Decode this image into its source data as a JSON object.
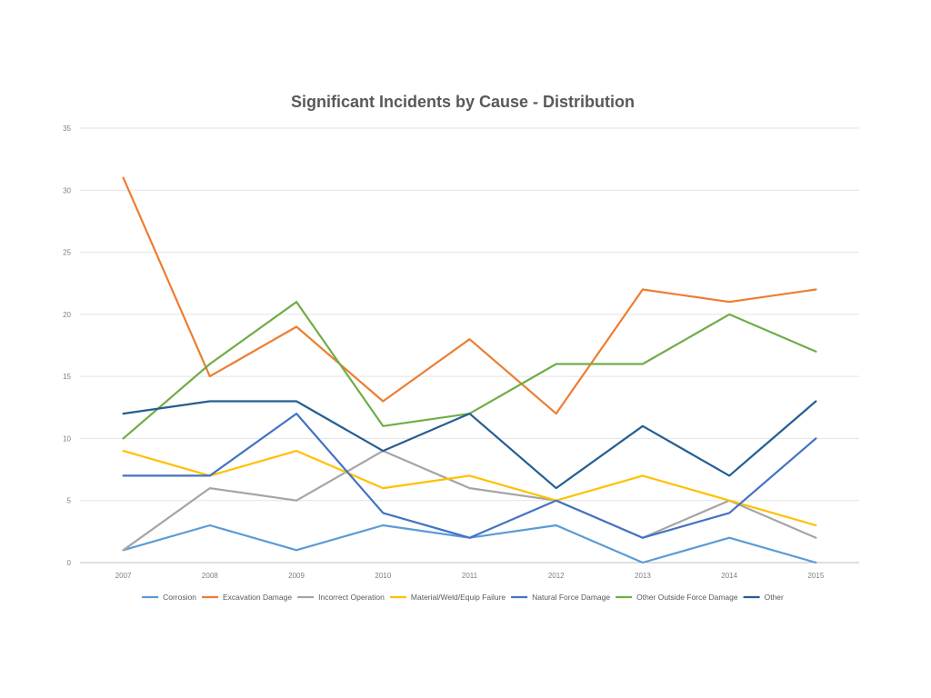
{
  "chart_data": {
    "type": "line",
    "title": "Significant Incidents by Cause - Distribution",
    "xlabel": "",
    "ylabel": "",
    "categories": [
      "2007",
      "2008",
      "2009",
      "2010",
      "2011",
      "2012",
      "2013",
      "2014",
      "2015"
    ],
    "ylim": [
      0,
      35
    ],
    "yticks": [
      "0",
      "5",
      "10",
      "15",
      "20",
      "25",
      "30",
      "35"
    ],
    "grid": "horizontal",
    "legend_position": "bottom",
    "series": [
      {
        "name": "Corrosion",
        "color": "#5b9bd5",
        "values": [
          1,
          3,
          1,
          3,
          2,
          3,
          0,
          2,
          0
        ]
      },
      {
        "name": "Excavation Damage",
        "color": "#ed7d31",
        "values": [
          31,
          15,
          19,
          13,
          18,
          12,
          22,
          21,
          22
        ]
      },
      {
        "name": "Incorrect Operation",
        "color": "#a5a5a5",
        "values": [
          1,
          6,
          5,
          9,
          6,
          5,
          2,
          5,
          2
        ]
      },
      {
        "name": "Material/Weld/Equip Failure",
        "color": "#ffc000",
        "values": [
          9,
          7,
          9,
          6,
          7,
          5,
          7,
          5,
          3
        ]
      },
      {
        "name": "Natural Force Damage",
        "color": "#4472c4",
        "values": [
          7,
          7,
          12,
          4,
          2,
          5,
          2,
          4,
          10
        ]
      },
      {
        "name": "Other Outside Force Damage",
        "color": "#70ad47",
        "values": [
          10,
          16,
          21,
          11,
          12,
          16,
          16,
          20,
          17
        ]
      },
      {
        "name": "Other",
        "color": "#255e91",
        "values": [
          12,
          13,
          13,
          9,
          12,
          6,
          11,
          7,
          13
        ]
      }
    ]
  }
}
